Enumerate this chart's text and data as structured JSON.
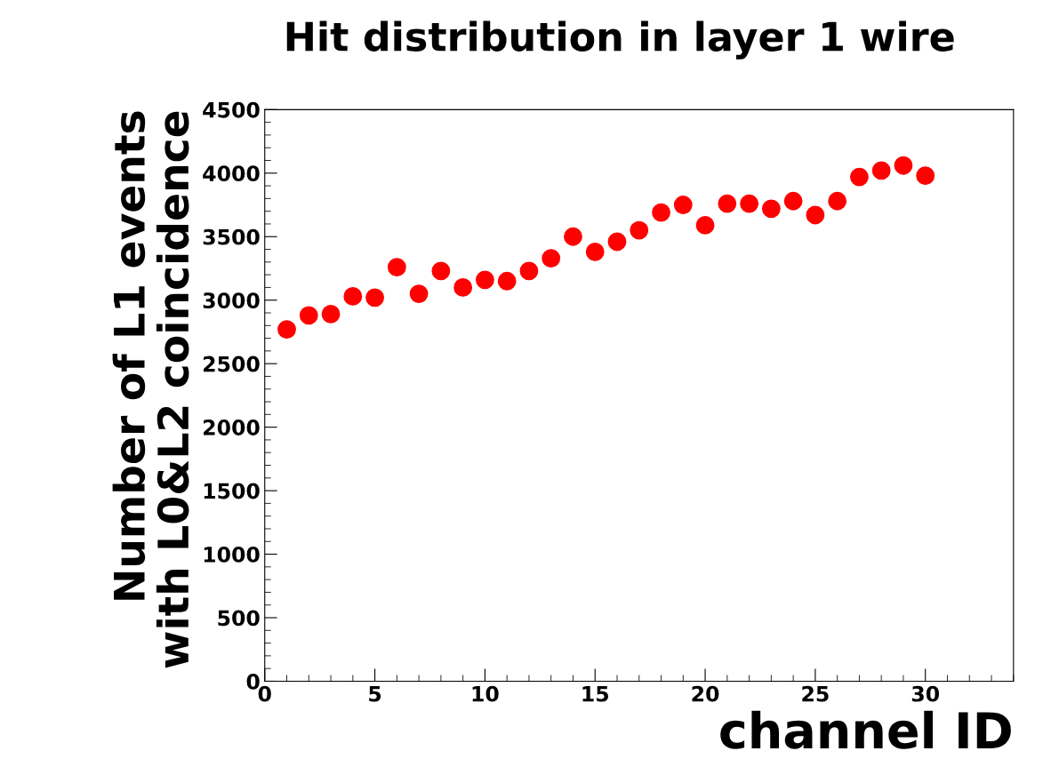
{
  "chart_data": {
    "type": "scatter",
    "title": "Hit distribution in layer 1 wire",
    "xlabel": "channel ID",
    "ylabel": "Number of L1 events\nwith L0&L2 coincidence",
    "x": [
      1,
      2,
      3,
      4,
      5,
      6,
      7,
      8,
      9,
      10,
      11,
      12,
      13,
      14,
      15,
      16,
      17,
      18,
      19,
      20,
      21,
      22,
      23,
      24,
      25,
      26,
      27,
      28,
      29,
      30
    ],
    "series": [
      {
        "color": "#ff0000",
        "values": [
          2770,
          2880,
          2890,
          3030,
          3020,
          3260,
          3050,
          3230,
          3100,
          3160,
          3150,
          3230,
          3330,
          3500,
          3380,
          3460,
          3550,
          3690,
          3750,
          3590,
          3760,
          3760,
          3720,
          3780,
          3670,
          3780,
          3970,
          4020,
          4060,
          3980
        ]
      }
    ],
    "xlim": [
      0,
      34
    ],
    "xticks": [
      0,
      5,
      10,
      15,
      20,
      25,
      30
    ],
    "ylim": [
      0,
      4500
    ],
    "yticks": [
      0,
      500,
      1000,
      1500,
      2000,
      2500,
      3000,
      3500,
      4000,
      4500
    ],
    "marker": "circle",
    "grid": false,
    "legend": false
  }
}
